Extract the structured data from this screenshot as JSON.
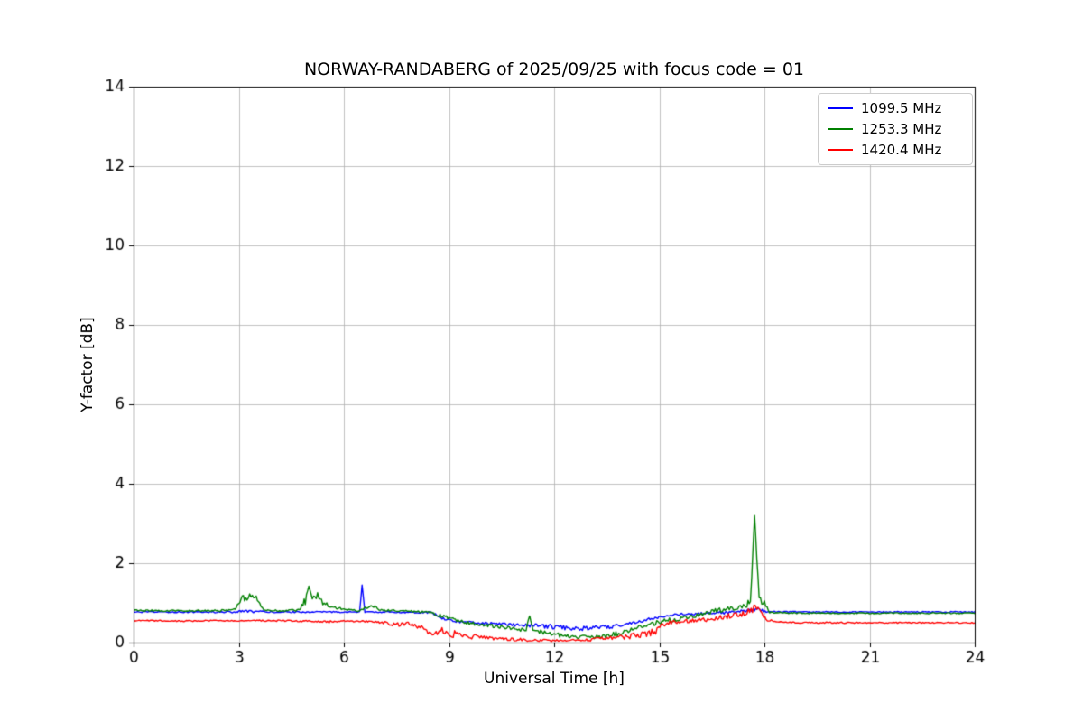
{
  "chart_data": {
    "type": "line",
    "title": "NORWAY-RANDABERG of 2025/09/25 with focus code = 01",
    "xlabel": "Universal Time [h]",
    "ylabel": "Y-factor [dB]",
    "xlim": [
      0,
      24
    ],
    "ylim": [
      0,
      14
    ],
    "xticks": [
      0,
      3,
      6,
      9,
      12,
      15,
      18,
      21,
      24
    ],
    "yticks": [
      0,
      2,
      4,
      6,
      8,
      10,
      12,
      14
    ],
    "grid": true,
    "grid_color": "#b0b0b0",
    "legend": {
      "location": "upper right",
      "entries": [
        "1099.5 MHz",
        "1253.3 MHz",
        "1420.4 MHz"
      ]
    },
    "series": [
      {
        "name": "1099.5 MHz",
        "color": "#0000ff",
        "points": [
          [
            0,
            0.77,
            0.015
          ],
          [
            2.9,
            0.77,
            0.02
          ],
          [
            3.1,
            0.79,
            0.03
          ],
          [
            3.5,
            0.78,
            0.03
          ],
          [
            3.8,
            0.77,
            0.02
          ],
          [
            6.45,
            0.77,
            0.015
          ],
          [
            6.52,
            1.45,
            0.0
          ],
          [
            6.6,
            0.77,
            0.015
          ],
          [
            8.5,
            0.76,
            0.02
          ],
          [
            8.8,
            0.62,
            0.03
          ],
          [
            9.2,
            0.53,
            0.03
          ],
          [
            9.8,
            0.5,
            0.03
          ],
          [
            10.4,
            0.47,
            0.03
          ],
          [
            11,
            0.44,
            0.04
          ],
          [
            11.5,
            0.42,
            0.05
          ],
          [
            12,
            0.4,
            0.06
          ],
          [
            12.5,
            0.37,
            0.06
          ],
          [
            13,
            0.36,
            0.06
          ],
          [
            13.4,
            0.38,
            0.06
          ],
          [
            13.8,
            0.42,
            0.05
          ],
          [
            14.2,
            0.5,
            0.04
          ],
          [
            14.7,
            0.58,
            0.04
          ],
          [
            15.1,
            0.66,
            0.03
          ],
          [
            15.6,
            0.71,
            0.03
          ],
          [
            16.2,
            0.73,
            0.03
          ],
          [
            17,
            0.76,
            0.04
          ],
          [
            17.6,
            0.8,
            0.05
          ],
          [
            17.9,
            0.83,
            0.05
          ],
          [
            18.05,
            0.78,
            0.02
          ],
          [
            19,
            0.77,
            0.015
          ],
          [
            21,
            0.77,
            0.015
          ],
          [
            24,
            0.77,
            0.015
          ]
        ]
      },
      {
        "name": "1253.3 MHz",
        "color": "#008000",
        "points": [
          [
            0,
            0.81,
            0.02
          ],
          [
            1,
            0.8,
            0.02
          ],
          [
            2,
            0.8,
            0.02
          ],
          [
            2.8,
            0.81,
            0.03
          ],
          [
            3.0,
            0.95,
            0.06
          ],
          [
            3.1,
            1.15,
            0.06
          ],
          [
            3.2,
            1.1,
            0.08
          ],
          [
            3.35,
            1.2,
            0.06
          ],
          [
            3.5,
            1.15,
            0.06
          ],
          [
            3.6,
            0.95,
            0.05
          ],
          [
            3.75,
            0.83,
            0.03
          ],
          [
            4.2,
            0.8,
            0.02
          ],
          [
            4.7,
            0.82,
            0.03
          ],
          [
            4.9,
            1.05,
            0.1
          ],
          [
            5.0,
            1.35,
            0.08
          ],
          [
            5.1,
            1.1,
            0.08
          ],
          [
            5.25,
            1.2,
            0.07
          ],
          [
            5.4,
            1.0,
            0.06
          ],
          [
            5.55,
            0.95,
            0.05
          ],
          [
            5.75,
            0.88,
            0.04
          ],
          [
            6.0,
            0.83,
            0.03
          ],
          [
            6.4,
            0.8,
            0.02
          ],
          [
            6.85,
            0.92,
            0.05
          ],
          [
            7.0,
            0.82,
            0.03
          ],
          [
            7.5,
            0.8,
            0.02
          ],
          [
            8.2,
            0.78,
            0.03
          ],
          [
            8.6,
            0.72,
            0.04
          ],
          [
            9.0,
            0.62,
            0.04
          ],
          [
            9.4,
            0.52,
            0.04
          ],
          [
            9.8,
            0.46,
            0.04
          ],
          [
            10.3,
            0.42,
            0.05
          ],
          [
            10.8,
            0.36,
            0.05
          ],
          [
            11.2,
            0.32,
            0.05
          ],
          [
            11.3,
            0.68,
            0.02
          ],
          [
            11.4,
            0.3,
            0.05
          ],
          [
            11.8,
            0.25,
            0.06
          ],
          [
            12.2,
            0.18,
            0.06
          ],
          [
            12.6,
            0.14,
            0.06
          ],
          [
            13.0,
            0.13,
            0.06
          ],
          [
            13.4,
            0.16,
            0.06
          ],
          [
            13.8,
            0.22,
            0.06
          ],
          [
            14.2,
            0.32,
            0.06
          ],
          [
            14.6,
            0.42,
            0.06
          ],
          [
            15.0,
            0.52,
            0.06
          ],
          [
            15.4,
            0.58,
            0.06
          ],
          [
            15.8,
            0.64,
            0.06
          ],
          [
            16.2,
            0.72,
            0.06
          ],
          [
            16.6,
            0.8,
            0.06
          ],
          [
            17.0,
            0.85,
            0.07
          ],
          [
            17.4,
            0.92,
            0.08
          ],
          [
            17.6,
            1.0,
            0.1
          ],
          [
            17.72,
            3.2,
            0.0
          ],
          [
            17.85,
            1.05,
            0.1
          ],
          [
            18.0,
            1.0,
            0.08
          ],
          [
            18.15,
            0.76,
            0.02
          ],
          [
            19,
            0.74,
            0.015
          ],
          [
            20,
            0.74,
            0.015
          ],
          [
            22,
            0.74,
            0.015
          ],
          [
            24,
            0.74,
            0.015
          ]
        ]
      },
      {
        "name": "1420.4 MHz",
        "color": "#ff0000",
        "points": [
          [
            0,
            0.55,
            0.015
          ],
          [
            1,
            0.55,
            0.015
          ],
          [
            1.5,
            0.54,
            0.02
          ],
          [
            2,
            0.55,
            0.015
          ],
          [
            3,
            0.55,
            0.015
          ],
          [
            4,
            0.55,
            0.02
          ],
          [
            5,
            0.54,
            0.02
          ],
          [
            5.5,
            0.52,
            0.03
          ],
          [
            6,
            0.54,
            0.02
          ],
          [
            6.8,
            0.53,
            0.02
          ],
          [
            7.2,
            0.5,
            0.04
          ],
          [
            7.5,
            0.45,
            0.05
          ],
          [
            7.8,
            0.48,
            0.04
          ],
          [
            8.1,
            0.42,
            0.06
          ],
          [
            8.4,
            0.3,
            0.08
          ],
          [
            8.6,
            0.18,
            0.08
          ],
          [
            8.8,
            0.3,
            0.1
          ],
          [
            9.0,
            0.15,
            0.08
          ],
          [
            9.2,
            0.25,
            0.1
          ],
          [
            9.5,
            0.12,
            0.06
          ],
          [
            9.8,
            0.15,
            0.06
          ],
          [
            10.2,
            0.1,
            0.05
          ],
          [
            10.6,
            0.08,
            0.04
          ],
          [
            11,
            0.07,
            0.04
          ],
          [
            11.5,
            0.06,
            0.03
          ],
          [
            12,
            0.05,
            0.03
          ],
          [
            12.5,
            0.05,
            0.03
          ],
          [
            13,
            0.07,
            0.04
          ],
          [
            13.4,
            0.1,
            0.05
          ],
          [
            13.8,
            0.13,
            0.06
          ],
          [
            14.2,
            0.17,
            0.07
          ],
          [
            14.6,
            0.22,
            0.08
          ],
          [
            14.9,
            0.28,
            0.08
          ],
          [
            15.05,
            0.45,
            0.06
          ],
          [
            15.3,
            0.5,
            0.05
          ],
          [
            15.7,
            0.53,
            0.05
          ],
          [
            16.1,
            0.56,
            0.05
          ],
          [
            16.5,
            0.6,
            0.06
          ],
          [
            16.9,
            0.65,
            0.07
          ],
          [
            17.2,
            0.7,
            0.08
          ],
          [
            17.5,
            0.78,
            0.1
          ],
          [
            17.7,
            0.85,
            0.12
          ],
          [
            17.9,
            0.75,
            0.1
          ],
          [
            18.05,
            0.58,
            0.04
          ],
          [
            18.3,
            0.52,
            0.02
          ],
          [
            19,
            0.5,
            0.015
          ],
          [
            20,
            0.5,
            0.02
          ],
          [
            21,
            0.5,
            0.015
          ],
          [
            22,
            0.5,
            0.015
          ],
          [
            23,
            0.5,
            0.015
          ],
          [
            24,
            0.5,
            0.015
          ]
        ]
      }
    ]
  }
}
